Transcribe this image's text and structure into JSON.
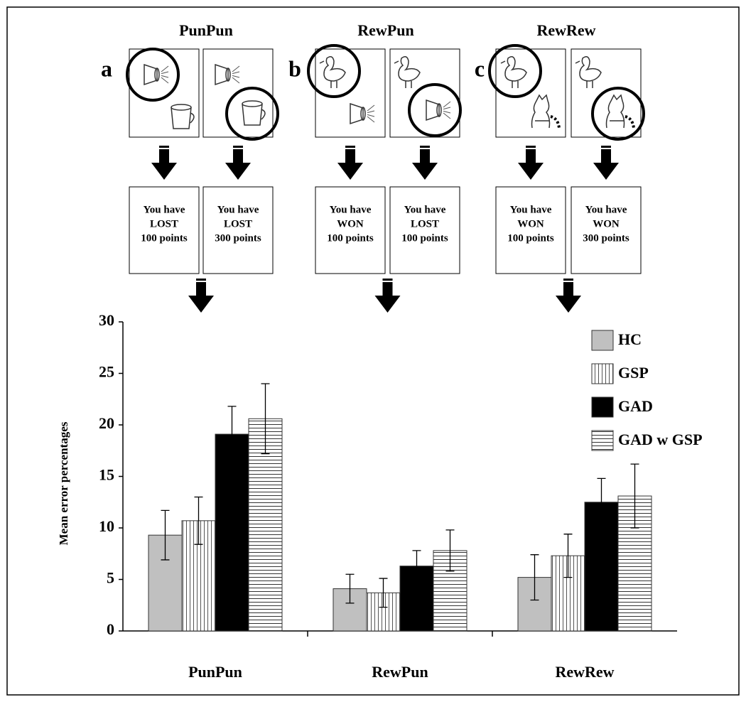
{
  "panels": [
    {
      "letter": "a",
      "title": "PunPun",
      "outcomes": [
        [
          "You have",
          "LOST",
          "100 points"
        ],
        [
          "You have",
          "LOST",
          "300 points"
        ]
      ]
    },
    {
      "letter": "b",
      "title": "RewPun",
      "outcomes": [
        [
          "You have",
          "WON",
          "100 points"
        ],
        [
          "You have",
          "LOST",
          "100 points"
        ]
      ]
    },
    {
      "letter": "c",
      "title": "RewRew",
      "outcomes": [
        [
          "You have",
          "WON",
          "100 points"
        ],
        [
          "You have",
          "WON",
          "300 points"
        ]
      ]
    }
  ],
  "chart_data": {
    "type": "bar",
    "y_label": "Mean error percentages",
    "categories": [
      "PunPun",
      "RewPun",
      "RewRew"
    ],
    "series": [
      {
        "name": "HC",
        "color": "#c0c0c0",
        "values": [
          9.3,
          4.1,
          5.2
        ],
        "errors": [
          2.4,
          1.4,
          2.2
        ]
      },
      {
        "name": "GSP",
        "color": "#ffffff",
        "pattern": "vertical",
        "values": [
          10.7,
          3.7,
          7.3
        ],
        "errors": [
          2.3,
          1.4,
          2.1
        ]
      },
      {
        "name": "GAD",
        "color": "#000000",
        "values": [
          19.1,
          6.3,
          12.5
        ],
        "errors": [
          2.7,
          1.5,
          2.3
        ]
      },
      {
        "name": "GAD w GSP",
        "color": "#ffffff",
        "pattern": "horizontal",
        "values": [
          20.6,
          7.8,
          13.1
        ],
        "errors": [
          3.4,
          2.0,
          3.1
        ]
      }
    ],
    "ylim": [
      0,
      30
    ],
    "yticks": [
      0,
      5,
      10,
      15,
      20,
      25,
      30
    ],
    "legend": "upper-right"
  }
}
